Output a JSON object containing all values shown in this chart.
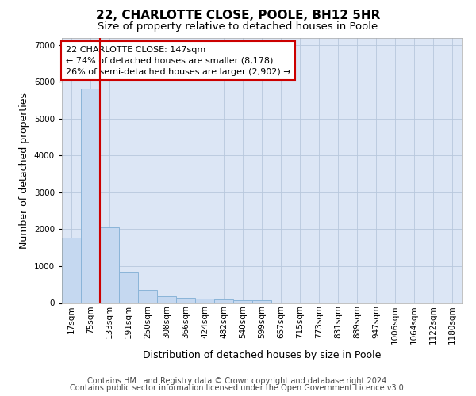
{
  "title": "22, CHARLOTTE CLOSE, POOLE, BH12 5HR",
  "subtitle": "Size of property relative to detached houses in Poole",
  "xlabel": "Distribution of detached houses by size in Poole",
  "ylabel": "Number of detached properties",
  "categories": [
    "17sqm",
    "75sqm",
    "133sqm",
    "191sqm",
    "250sqm",
    "308sqm",
    "366sqm",
    "424sqm",
    "482sqm",
    "540sqm",
    "599sqm",
    "657sqm",
    "715sqm",
    "773sqm",
    "831sqm",
    "889sqm",
    "947sqm",
    "1006sqm",
    "1064sqm",
    "1122sqm",
    "1180sqm"
  ],
  "values": [
    1780,
    5820,
    2060,
    830,
    345,
    190,
    145,
    115,
    100,
    80,
    75,
    0,
    0,
    0,
    0,
    0,
    0,
    0,
    0,
    0,
    0
  ],
  "bar_color": "#c5d8f0",
  "bar_edge_color": "#8ab4d8",
  "vline_color": "#cc0000",
  "vline_xindex": 2,
  "annotation_text": "22 CHARLOTTE CLOSE: 147sqm\n← 74% of detached houses are smaller (8,178)\n26% of semi-detached houses are larger (2,902) →",
  "annotation_box_facecolor": "#ffffff",
  "annotation_box_edgecolor": "#cc0000",
  "ylim": [
    0,
    7200
  ],
  "yticks": [
    0,
    1000,
    2000,
    3000,
    4000,
    5000,
    6000,
    7000
  ],
  "bg_color": "#dce6f5",
  "grid_color": "#b8c8dc",
  "footer_line1": "Contains HM Land Registry data © Crown copyright and database right 2024.",
  "footer_line2": "Contains public sector information licensed under the Open Government Licence v3.0.",
  "title_fontsize": 11,
  "subtitle_fontsize": 9.5,
  "axis_label_fontsize": 9,
  "tick_fontsize": 7.5,
  "annotation_fontsize": 8,
  "footer_fontsize": 7
}
